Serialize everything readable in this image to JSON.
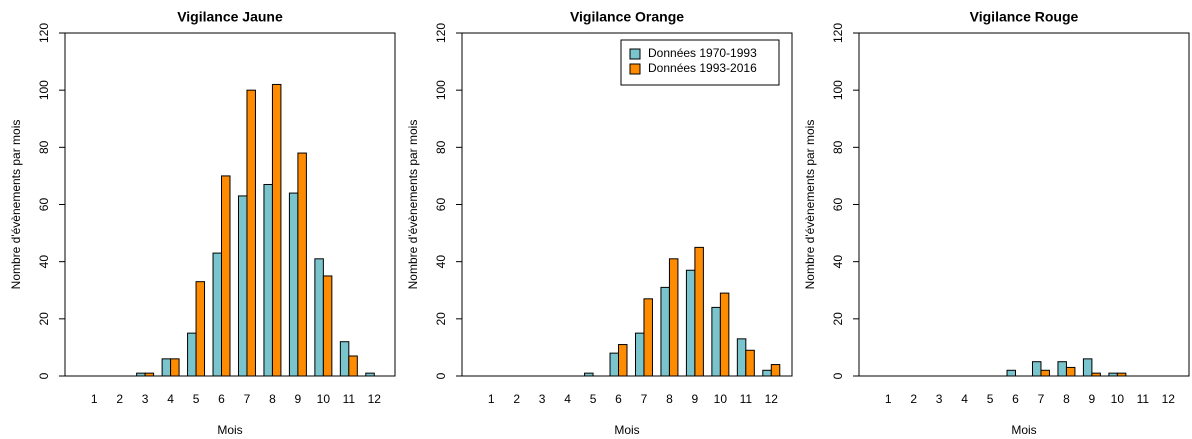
{
  "chart_data": [
    {
      "type": "bar",
      "title": "Vigilance Jaune",
      "xlabel": "Mois",
      "ylabel": "Nombre d'évènements par mois",
      "categories": [
        "1",
        "2",
        "3",
        "4",
        "5",
        "6",
        "7",
        "8",
        "9",
        "10",
        "11",
        "12"
      ],
      "series": [
        {
          "name": "Données 1970-1993",
          "color": "#7AC5CD",
          "values": [
            0,
            0,
            1,
            6,
            15,
            43,
            63,
            67,
            64,
            41,
            12,
            1
          ]
        },
        {
          "name": "Données 1993-2016",
          "color": "#FF8C00",
          "values": [
            0,
            0,
            1,
            6,
            33,
            70,
            100,
            102,
            78,
            35,
            7,
            0
          ]
        }
      ],
      "ylim": [
        0,
        120
      ],
      "yticks": [
        0,
        20,
        40,
        60,
        80,
        100,
        120
      ]
    },
    {
      "type": "bar",
      "title": "Vigilance Orange",
      "xlabel": "Mois",
      "ylabel": "Nombre d'évènements par mois",
      "categories": [
        "1",
        "2",
        "3",
        "4",
        "5",
        "6",
        "7",
        "8",
        "9",
        "10",
        "11",
        "12"
      ],
      "series": [
        {
          "name": "Données 1970-1993",
          "color": "#7AC5CD",
          "values": [
            0,
            0,
            0,
            0,
            1,
            8,
            15,
            31,
            37,
            24,
            13,
            2
          ]
        },
        {
          "name": "Données 1993-2016",
          "color": "#FF8C00",
          "values": [
            0,
            0,
            0,
            0,
            0,
            11,
            27,
            41,
            45,
            29,
            9,
            4
          ]
        }
      ],
      "ylim": [
        0,
        120
      ],
      "yticks": [
        0,
        20,
        40,
        60,
        80,
        100,
        120
      ],
      "legend": "top-right"
    },
    {
      "type": "bar",
      "title": "Vigilance Rouge",
      "xlabel": "Mois",
      "ylabel": "Nombre d'évènements par mois",
      "categories": [
        "1",
        "2",
        "3",
        "4",
        "5",
        "6",
        "7",
        "8",
        "9",
        "10",
        "11",
        "12"
      ],
      "series": [
        {
          "name": "Données 1970-1993",
          "color": "#7AC5CD",
          "values": [
            0,
            0,
            0,
            0,
            0,
            2,
            5,
            5,
            6,
            1,
            0,
            0
          ]
        },
        {
          "name": "Données 1993-2016",
          "color": "#FF8C00",
          "values": [
            0,
            0,
            0,
            0,
            0,
            0,
            2,
            3,
            1,
            1,
            0,
            0
          ]
        }
      ],
      "ylim": [
        0,
        120
      ],
      "yticks": [
        0,
        20,
        40,
        60,
        80,
        100,
        120
      ]
    }
  ]
}
